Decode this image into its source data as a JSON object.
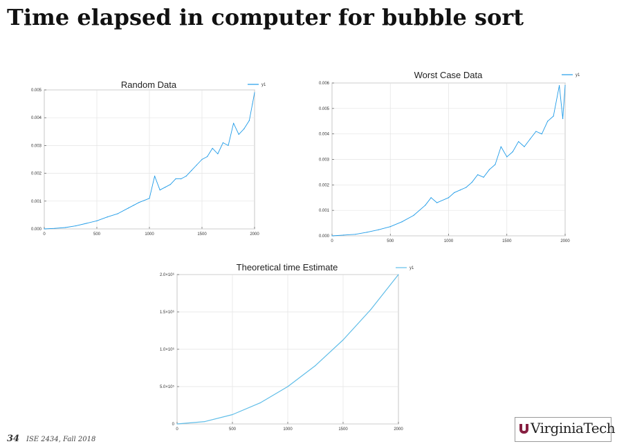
{
  "page": {
    "title": "Time elapsed in computer for bubble sort",
    "slide_number": "34",
    "course": "ISE 2434, Fall 2018",
    "logo_text": "VirginiaTech"
  },
  "colors": {
    "series": "#1e9be8",
    "theory": "#5fbde8",
    "grid": "#e3e3e3",
    "axis": "#555555"
  },
  "chart_data": [
    {
      "type": "line",
      "title": "Random Data",
      "xlabel": "",
      "ylabel": "",
      "xlim": [
        0,
        2000
      ],
      "ylim": [
        0,
        0.005
      ],
      "xticks": [
        0,
        500,
        1000,
        1500,
        2000
      ],
      "xtick_labels": [
        "0",
        "500",
        "1000",
        "1500",
        "2000"
      ],
      "yticks": [
        0,
        0.001,
        0.002,
        0.003,
        0.004,
        0.005
      ],
      "ytick_labels": [
        "0.000",
        "0.001",
        "0.002",
        "0.003",
        "0.004",
        "0.005"
      ],
      "legend_position": "top-right",
      "grid": true,
      "series": [
        {
          "name": "y1",
          "x": [
            0,
            100,
            200,
            300,
            400,
            500,
            600,
            700,
            800,
            850,
            900,
            1000,
            1050,
            1100,
            1150,
            1200,
            1250,
            1300,
            1350,
            1400,
            1450,
            1500,
            1550,
            1600,
            1650,
            1700,
            1750,
            1800,
            1850,
            1900,
            1950,
            1980,
            2000
          ],
          "values": [
            0,
            2e-05,
            5e-05,
            0.00011,
            0.0002,
            0.00029,
            0.00043,
            0.00055,
            0.00075,
            0.00085,
            0.00095,
            0.0011,
            0.0019,
            0.0014,
            0.0015,
            0.0016,
            0.0018,
            0.0018,
            0.0019,
            0.0021,
            0.0023,
            0.0025,
            0.0026,
            0.0029,
            0.0027,
            0.0031,
            0.003,
            0.0038,
            0.0034,
            0.0036,
            0.0039,
            0.0045,
            0.0049
          ]
        }
      ]
    },
    {
      "type": "line",
      "title": "Worst Case Data",
      "xlabel": "",
      "ylabel": "",
      "xlim": [
        0,
        2000
      ],
      "ylim": [
        0,
        0.006
      ],
      "xticks": [
        0,
        500,
        1000,
        1500,
        2000
      ],
      "xtick_labels": [
        "0",
        "500",
        "1000",
        "1500",
        "2000"
      ],
      "yticks": [
        0,
        0.001,
        0.002,
        0.003,
        0.004,
        0.005,
        0.006
      ],
      "ytick_labels": [
        "0.000",
        "0.001",
        "0.002",
        "0.003",
        "0.004",
        "0.005",
        "0.006"
      ],
      "legend_position": "top-right",
      "grid": true,
      "series": [
        {
          "name": "y1",
          "x": [
            0,
            100,
            200,
            300,
            400,
            500,
            600,
            700,
            800,
            850,
            900,
            1000,
            1050,
            1100,
            1150,
            1200,
            1250,
            1300,
            1350,
            1400,
            1450,
            1500,
            1550,
            1600,
            1650,
            1700,
            1750,
            1800,
            1850,
            1900,
            1950,
            1980,
            2000
          ],
          "values": [
            0,
            3e-05,
            6e-05,
            0.00014,
            0.00024,
            0.00036,
            0.00055,
            0.0008,
            0.0012,
            0.0015,
            0.0013,
            0.0015,
            0.0017,
            0.0018,
            0.0019,
            0.0021,
            0.0024,
            0.0023,
            0.0026,
            0.0028,
            0.0035,
            0.0031,
            0.0033,
            0.0037,
            0.0035,
            0.0038,
            0.0041,
            0.004,
            0.0045,
            0.0047,
            0.0059,
            0.0046,
            0.0059
          ]
        }
      ]
    },
    {
      "type": "line",
      "title": "Theoretical time Estimate",
      "xlabel": "",
      "ylabel": "",
      "xlim": [
        0,
        2000
      ],
      "ylim": [
        0,
        2000000
      ],
      "xticks": [
        0,
        500,
        1000,
        1500,
        2000
      ],
      "xtick_labels": [
        "0",
        "500",
        "1000",
        "1500",
        "2000"
      ],
      "yticks": [
        0,
        500000,
        1000000,
        1500000,
        2000000
      ],
      "ytick_labels": [
        "0",
        "5.0×10⁵",
        "1.0×10⁶",
        "1.5×10⁶",
        "2.0×10⁶"
      ],
      "legend_position": "top-right",
      "grid": true,
      "series": [
        {
          "name": "y1",
          "x": [
            0,
            250,
            500,
            750,
            1000,
            1250,
            1500,
            1750,
            2000
          ],
          "values": [
            0,
            31250,
            125000,
            281250,
            500000,
            781250,
            1125000,
            1531250,
            2000000
          ]
        }
      ]
    }
  ]
}
